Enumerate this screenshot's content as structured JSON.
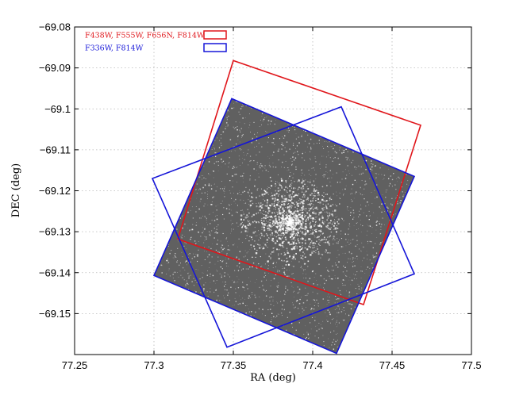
{
  "chart_data": {
    "type": "scatter",
    "title": "",
    "xlabel": "RA (deg)",
    "ylabel": "DEC (deg)",
    "xlim": [
      77.25,
      77.5
    ],
    "ylim": [
      -69.16,
      -69.08
    ],
    "x_ticks": [
      "77.25",
      "77.3",
      "77.35",
      "77.4",
      "77.45",
      "77.5"
    ],
    "y_ticks": [
      "−69.08",
      "−69.09",
      "−69.1",
      "−69.11",
      "−69.12",
      "−69.13",
      "−69.14",
      "−69.15"
    ],
    "grid": true,
    "legend_position": "top-left",
    "image_footprint": {
      "fill_color": "#606060",
      "corners": [
        [
          77.349,
          -69.0975
        ],
        [
          77.464,
          -69.1165
        ],
        [
          77.415,
          -69.1597
        ],
        [
          77.3,
          -69.1407
        ]
      ],
      "star_cluster_center": [
        77.385,
        -69.1275
      ]
    },
    "series": [
      {
        "name": "F438W, F555W, F656N, F814W",
        "color": "#e0161b",
        "footprints": [
          [
            [
              77.35,
              -69.0882
            ],
            [
              77.468,
              -69.104
            ],
            [
              77.432,
              -69.1478
            ],
            [
              77.315,
              -69.1318
            ]
          ]
        ]
      },
      {
        "name": "F336W, F814W",
        "color": "#1515d8",
        "footprints": [
          [
            [
              77.349,
              -69.0975
            ],
            [
              77.464,
              -69.1165
            ],
            [
              77.415,
              -69.1597
            ],
            [
              77.3,
              -69.1407
            ]
          ],
          [
            [
              77.418,
              -69.0995
            ],
            [
              77.464,
              -69.1403
            ],
            [
              77.346,
              -69.1582
            ],
            [
              77.299,
              -69.117
            ]
          ]
        ]
      }
    ]
  }
}
